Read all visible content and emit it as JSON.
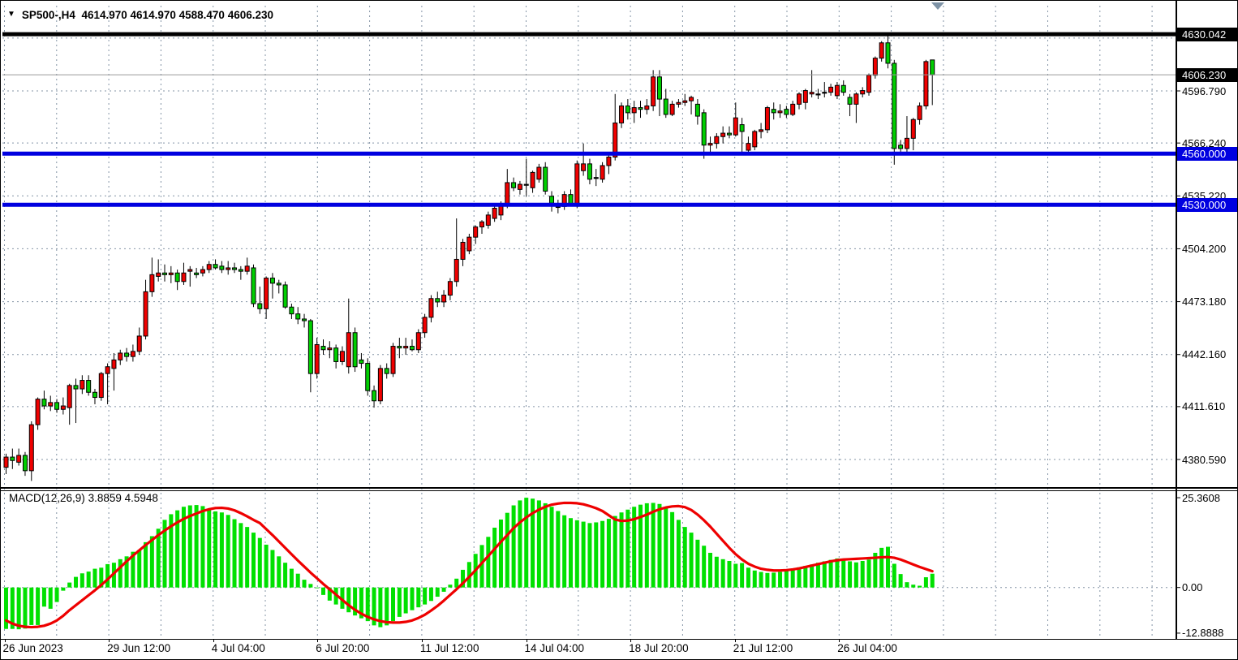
{
  "header": {
    "symbol_period": "SP500-,H4",
    "open": "4614.970",
    "high": "4614.970",
    "low": "4588.470",
    "close": "4606.230",
    "dropdown_icon": "▼"
  },
  "macd_panel": {
    "name": "MACD(12,26,9)",
    "value_main": "3.8859",
    "value_signal": "4.5948"
  },
  "colors": {
    "bull_candle": "#f00000",
    "bear_candle": "#00ce00",
    "candle_border": "#000000",
    "wick": "#000000",
    "grid": "#8494a6",
    "hist_green": "#00e000",
    "signal_red": "#ee0000",
    "level_blue": "#0000e0",
    "level_black": "#000000",
    "bid_line_silver": "#9a9a9a",
    "axis_text": "#000000",
    "scroll_marker": "#7e93a6"
  },
  "chart_data": {
    "type": "candlestick",
    "symbol": "SP500-",
    "timeframe": "H4",
    "title": "SP500-,H4 4614.970 4614.970 4588.470 4606.230",
    "ylim_main": [
      4363,
      4641
    ],
    "grid": "dashed",
    "price_axis_ticks": [
      {
        "text": "4630.042",
        "price": 4630.042,
        "bg": "black"
      },
      {
        "text": "4606.230",
        "price": 4606.23,
        "bg": "black"
      },
      {
        "text": "4596.790",
        "price": 4596.79,
        "bg": null
      },
      {
        "text": "4566.240",
        "price": 4566.24,
        "bg": null
      },
      {
        "text": "4560.000",
        "price": 4560.0,
        "bg": "blue"
      },
      {
        "text": "4535.220",
        "price": 4535.22,
        "bg": null
      },
      {
        "text": "4530.000",
        "price": 4530.0,
        "bg": "blue"
      },
      {
        "text": "4504.200",
        "price": 4504.2,
        "bg": null
      },
      {
        "text": "4473.180",
        "price": 4473.18,
        "bg": null
      },
      {
        "text": "4442.160",
        "price": 4442.16,
        "bg": null
      },
      {
        "text": "4411.610",
        "price": 4411.61,
        "bg": null
      },
      {
        "text": "4380.590",
        "price": 4380.59,
        "bg": null
      }
    ],
    "grid_prices": [
      4627.81,
      4596.79,
      4566.24,
      4535.22,
      4504.2,
      4473.18,
      4442.16,
      4411.61,
      4380.59
    ],
    "horizontal_lines": [
      {
        "price": 4630.042,
        "color": "#000000",
        "width": 5,
        "name": "high-level-line"
      },
      {
        "price": 4606.23,
        "color": "#9a9a9a",
        "width": 1,
        "name": "bid-price-line"
      },
      {
        "price": 4560.0,
        "color": "#0000e0",
        "width": 5,
        "name": "support-line-4560"
      },
      {
        "price": 4530.0,
        "color": "#0000e0",
        "width": 5,
        "name": "support-line-4530"
      }
    ],
    "time_axis_labels": [
      "26 Jun 2023",
      "29 Jun 12:00",
      "4 Jul 04:00",
      "6 Jul 20:00",
      "11 Jul 12:00",
      "14 Jul 04:00",
      "18 Jul 20:00",
      "21 Jul 12:00",
      "26 Jul 04:00"
    ],
    "ohlc_bars": [
      [
        4376,
        4384,
        4372,
        4382
      ],
      [
        4382,
        4387,
        4375,
        4380
      ],
      [
        4379,
        4387,
        4377,
        4383
      ],
      [
        4383,
        4385,
        4371,
        4374
      ],
      [
        4374,
        4403,
        4368,
        4401
      ],
      [
        4401,
        4417,
        4398,
        4416
      ],
      [
        4416,
        4421,
        4410,
        4412
      ],
      [
        4412,
        4418,
        4409,
        4414
      ],
      [
        4414,
        4416,
        4408,
        4410
      ],
      [
        4410,
        4417,
        4407,
        4412
      ],
      [
        4411,
        4425,
        4401,
        4424
      ],
      [
        4424,
        4428,
        4402,
        4422
      ],
      [
        4422,
        4430,
        4419,
        4427
      ],
      [
        4427,
        4430,
        4418,
        4420
      ],
      [
        4420,
        4422,
        4413,
        4417
      ],
      [
        4417,
        4432,
        4415,
        4431
      ],
      [
        4431,
        4437,
        4413,
        4435
      ],
      [
        4434,
        4443,
        4421,
        4439
      ],
      [
        4439,
        4445,
        4436,
        4443
      ],
      [
        4443,
        4446,
        4438,
        4441
      ],
      [
        4441,
        4448,
        4438,
        4444
      ],
      [
        4444,
        4458,
        4442,
        4453
      ],
      [
        4453,
        4486,
        4451,
        4479
      ],
      [
        4479,
        4499,
        4476,
        4489
      ],
      [
        4488,
        4498,
        4485,
        4490
      ],
      [
        4490,
        4495,
        4485,
        4489
      ],
      [
        4489,
        4494,
        4484,
        4490
      ],
      [
        4490,
        4492,
        4480,
        4485
      ],
      [
        4485,
        4496,
        4483,
        4490
      ],
      [
        4491,
        4494,
        4482,
        4492
      ],
      [
        4490,
        4493,
        4487,
        4489
      ],
      [
        4490,
        4494,
        4488,
        4492
      ],
      [
        4492,
        4497,
        4490,
        4495
      ],
      [
        4495,
        4498,
        4492,
        4493
      ],
      [
        4494,
        4497,
        4490,
        4492
      ],
      [
        4492,
        4497,
        4489,
        4493
      ],
      [
        4493,
        4496,
        4490,
        4492
      ],
      [
        4492,
        4494,
        4486,
        4491
      ],
      [
        4491,
        4499,
        4489,
        4494
      ],
      [
        4493,
        4495,
        4470,
        4472
      ],
      [
        4472,
        4482,
        4466,
        4469
      ],
      [
        4469,
        4488,
        4463,
        4487
      ],
      [
        4487,
        4490,
        4475,
        4484
      ],
      [
        4484,
        4486,
        4478,
        4483
      ],
      [
        4483,
        4485,
        4469,
        4470
      ],
      [
        4470,
        4472,
        4463,
        4466
      ],
      [
        4466,
        4470,
        4460,
        4463
      ],
      [
        4463,
        4466,
        4458,
        4462
      ],
      [
        4462,
        4463,
        4420,
        4431
      ],
      [
        4431,
        4452,
        4428,
        4448
      ],
      [
        4447,
        4451,
        4442,
        4445
      ],
      [
        4445,
        4450,
        4440,
        4446
      ],
      [
        4446,
        4448,
        4434,
        4438
      ],
      [
        4438,
        4447,
        4436,
        4444
      ],
      [
        4435,
        4475,
        4431,
        4455
      ],
      [
        4455,
        4458,
        4432,
        4435
      ],
      [
        4439,
        4443,
        4434,
        4437
      ],
      [
        4437,
        4440,
        4418,
        4421
      ],
      [
        4421,
        4424,
        4411,
        4415
      ],
      [
        4415,
        4436,
        4413,
        4434
      ],
      [
        4434,
        4437,
        4428,
        4431
      ],
      [
        4431,
        4449,
        4429,
        4447
      ],
      [
        4447,
        4452,
        4440,
        4446
      ],
      [
        4446,
        4452,
        4442,
        4447
      ],
      [
        4447,
        4451,
        4444,
        4445
      ],
      [
        4445,
        4457,
        4443,
        4455
      ],
      [
        4455,
        4466,
        4452,
        4464
      ],
      [
        4464,
        4477,
        4461,
        4475
      ],
      [
        4475,
        4479,
        4470,
        4473
      ],
      [
        4473,
        4480,
        4470,
        4477
      ],
      [
        4477,
        4487,
        4474,
        4485
      ],
      [
        4485,
        4522,
        4482,
        4498
      ],
      [
        4498,
        4510,
        4494,
        4508
      ],
      [
        4503,
        4513,
        4501,
        4511
      ],
      [
        4511,
        4518,
        4507,
        4517
      ],
      [
        4517,
        4521,
        4513,
        4520
      ],
      [
        4518,
        4526,
        4516,
        4524
      ],
      [
        4522,
        4530,
        4520,
        4528
      ],
      [
        4524,
        4532,
        4521,
        4530
      ],
      [
        4530,
        4551,
        4528,
        4543
      ],
      [
        4543,
        4546,
        4538,
        4540
      ],
      [
        4539,
        4544,
        4536,
        4542
      ],
      [
        4542,
        4557,
        4535,
        4542
      ],
      [
        4540,
        4550,
        4537,
        4549
      ],
      [
        4545,
        4554,
        4543,
        4552
      ],
      [
        4552,
        4555,
        4536,
        4538
      ],
      [
        4535,
        4538,
        4526,
        4531
      ],
      [
        4529,
        4533,
        4525,
        4529
      ],
      [
        4529,
        4538,
        4527,
        4536
      ],
      [
        4536,
        4539,
        4529,
        4530
      ],
      [
        4530,
        4556,
        4528,
        4554
      ],
      [
        4550,
        4566,
        4547,
        4554
      ],
      [
        4554,
        4557,
        4542,
        4545
      ],
      [
        4546,
        4551,
        4541,
        4546
      ],
      [
        4545,
        4555,
        4543,
        4553
      ],
      [
        4553,
        4560,
        4548,
        4558
      ],
      [
        4558,
        4595,
        4556,
        4578
      ],
      [
        4578,
        4590,
        4575,
        4588
      ],
      [
        4588,
        4592,
        4580,
        4584
      ],
      [
        4584,
        4591,
        4578,
        4587
      ],
      [
        4587,
        4591,
        4581,
        4586
      ],
      [
        4586,
        4592,
        4583,
        4588
      ],
      [
        4588,
        4609,
        4585,
        4605
      ],
      [
        4605,
        4609,
        4582,
        4592
      ],
      [
        4592,
        4598,
        4581,
        4583
      ],
      [
        4583,
        4591,
        4582,
        4589
      ],
      [
        4589,
        4592,
        4587,
        4590
      ],
      [
        4590,
        4595,
        4588,
        4591
      ],
      [
        4591,
        4594,
        4583,
        4593
      ],
      [
        4589,
        4592,
        4577,
        4582
      ],
      [
        4584,
        4586,
        4557,
        4565
      ],
      [
        4565,
        4570,
        4560,
        4566
      ],
      [
        4566,
        4572,
        4563,
        4570
      ],
      [
        4570,
        4576,
        4566,
        4572
      ],
      [
        4572,
        4576,
        4569,
        4571
      ],
      [
        4571,
        4590,
        4570,
        4581
      ],
      [
        4577,
        4581,
        4560,
        4573
      ],
      [
        4562,
        4570,
        4559,
        4566
      ],
      [
        4564,
        4574,
        4562,
        4573
      ],
      [
        4573,
        4578,
        4569,
        4574
      ],
      [
        4574,
        4588,
        4572,
        4587
      ],
      [
        4586,
        4590,
        4580,
        4584
      ],
      [
        4584,
        4589,
        4581,
        4585
      ],
      [
        4586,
        4588,
        4581,
        4583
      ],
      [
        4583,
        4591,
        4582,
        4589
      ],
      [
        4589,
        4596,
        4586,
        4595
      ],
      [
        4590,
        4598,
        4586,
        4597
      ],
      [
        4595,
        4609,
        4593,
        4596
      ],
      [
        4595,
        4598,
        4592,
        4595
      ],
      [
        4596,
        4602,
        4593,
        4596
      ],
      [
        4596,
        4601,
        4594,
        4599
      ],
      [
        4594,
        4602,
        4592,
        4600
      ],
      [
        4600,
        4603,
        4594,
        4596
      ],
      [
        4593,
        4595,
        4582,
        4589
      ],
      [
        4589,
        4596,
        4578,
        4595
      ],
      [
        4595,
        4599,
        4593,
        4597
      ],
      [
        4596,
        4607,
        4594,
        4606
      ],
      [
        4606,
        4617,
        4604,
        4616
      ],
      [
        4616,
        4626,
        4614,
        4625
      ],
      [
        4625,
        4630.042,
        4610,
        4613
      ],
      [
        4613,
        4615,
        4553.5,
        4563
      ],
      [
        4565,
        4568,
        4560.5,
        4563
      ],
      [
        4563,
        4582,
        4561,
        4569
      ],
      [
        4569,
        4581,
        4562,
        4580
      ],
      [
        4580,
        4590,
        4577,
        4588
      ],
      [
        4588,
        4615,
        4586,
        4614
      ],
      [
        4614.97,
        4614.97,
        4588.47,
        4606.23
      ]
    ],
    "indicator": {
      "type": "MACD",
      "params": "12,26,9",
      "axis_ticks": [
        {
          "text": "25.3608",
          "value": 25.3608
        },
        {
          "text": "0.00",
          "value": 0
        },
        {
          "text": "-12.8888",
          "value": -12.8888
        }
      ],
      "ylim": [
        -14.5,
        27.5
      ],
      "histogram": [
        -11.7,
        -11.7,
        -11.8,
        -11.6,
        -10.6,
        -10.6,
        -5.4,
        -6.0,
        -4.1,
        -0.9,
        1.4,
        3.0,
        4.0,
        4.5,
        5.3,
        5.6,
        6.6,
        7.0,
        8.0,
        8.8,
        10.1,
        10.6,
        12.8,
        14.5,
        16.6,
        19.1,
        20.7,
        21.8,
        22.8,
        23.2,
        23.3,
        23.0,
        22.0,
        21.5,
        21.2,
        20.5,
        19.3,
        18.2,
        17.1,
        15.5,
        14.0,
        12.1,
        10.6,
        8.8,
        7.0,
        5.3,
        3.9,
        2.2,
        1.0,
        -0.2,
        -2.1,
        -3.7,
        -4.8,
        -6.0,
        -7.0,
        -7.9,
        -8.7,
        -9.5,
        -10.7,
        -11.2,
        -10.7,
        -9.5,
        -8.3,
        -7.3,
        -6.4,
        -5.6,
        -4.8,
        -3.8,
        -2.6,
        -1.2,
        0.8,
        2.5,
        5.0,
        7.2,
        9.5,
        12.0,
        14.3,
        16.9,
        19.2,
        21.1,
        23.2,
        24.6,
        25.36,
        25.1,
        24.6,
        23.8,
        22.8,
        21.6,
        20.4,
        19.6,
        19.0,
        18.6,
        18.2,
        18.4,
        18.8,
        19.4,
        20.2,
        21.2,
        22.0,
        22.8,
        23.4,
        23.8,
        23.9,
        23.6,
        22.8,
        21.3,
        19.1,
        17.1,
        15.5,
        13.5,
        11.8,
        9.8,
        8.7,
        8.0,
        7.5,
        6.7,
        6.9,
        5.6,
        4.8,
        4.4,
        4.1,
        4.2,
        4.4,
        4.7,
        5.0,
        5.7,
        6.1,
        6.5,
        7.0,
        7.4,
        7.8,
        8.2,
        7.8,
        7.4,
        7.1,
        7.5,
        7.9,
        9.8,
        11.2,
        11.5,
        6.7,
        3.8,
        1.5,
        0.8,
        0.5,
        2.9,
        3.8859
      ],
      "signal": [
        -9.3,
        -10.2,
        -10.8,
        -11.1,
        -11.2,
        -11.1,
        -10.8,
        -10.2,
        -9.3,
        -8.0,
        -6.4,
        -5.0,
        -3.6,
        -2.2,
        -0.8,
        0.7,
        2.3,
        4.0,
        5.7,
        7.4,
        9.0,
        10.5,
        12.0,
        13.4,
        14.8,
        16.1,
        17.3,
        18.4,
        19.4,
        20.2,
        20.9,
        21.6,
        22.1,
        22.45,
        22.5,
        22.3,
        21.8,
        21.0,
        20.1,
        19.1,
        18.2,
        16.5,
        14.8,
        13.0,
        11.2,
        9.4,
        7.6,
        5.9,
        4.2,
        2.6,
        1.0,
        -0.5,
        -2.0,
        -3.5,
        -5.0,
        -6.3,
        -7.4,
        -8.3,
        -9.0,
        -9.5,
        -9.8,
        -9.9,
        -9.9,
        -9.7,
        -9.3,
        -8.6,
        -7.7,
        -6.5,
        -5.2,
        -3.7,
        -2.1,
        -0.5,
        1.2,
        3.0,
        4.9,
        6.9,
        8.9,
        10.9,
        12.9,
        14.8,
        16.8,
        18.4,
        19.8,
        21.0,
        22.0,
        22.8,
        23.4,
        23.7,
        23.9,
        23.9,
        23.8,
        23.5,
        23.0,
        22.4,
        21.6,
        20.4,
        19.2,
        18.8,
        18.9,
        19.3,
        19.9,
        20.6,
        21.4,
        22.1,
        22.6,
        22.9,
        23.0,
        22.7,
        21.9,
        20.6,
        19.0,
        17.2,
        15.2,
        13.2,
        11.2,
        9.4,
        7.9,
        6.7,
        5.9,
        5.3,
        5.0,
        4.8,
        4.8,
        4.9,
        5.1,
        5.4,
        5.8,
        6.2,
        6.6,
        7.0,
        7.4,
        7.7,
        7.9,
        8.0,
        8.1,
        8.2,
        8.3,
        8.4,
        8.55,
        8.6,
        8.4,
        7.9,
        7.2,
        6.5,
        5.8,
        5.2,
        4.5948
      ]
    }
  }
}
